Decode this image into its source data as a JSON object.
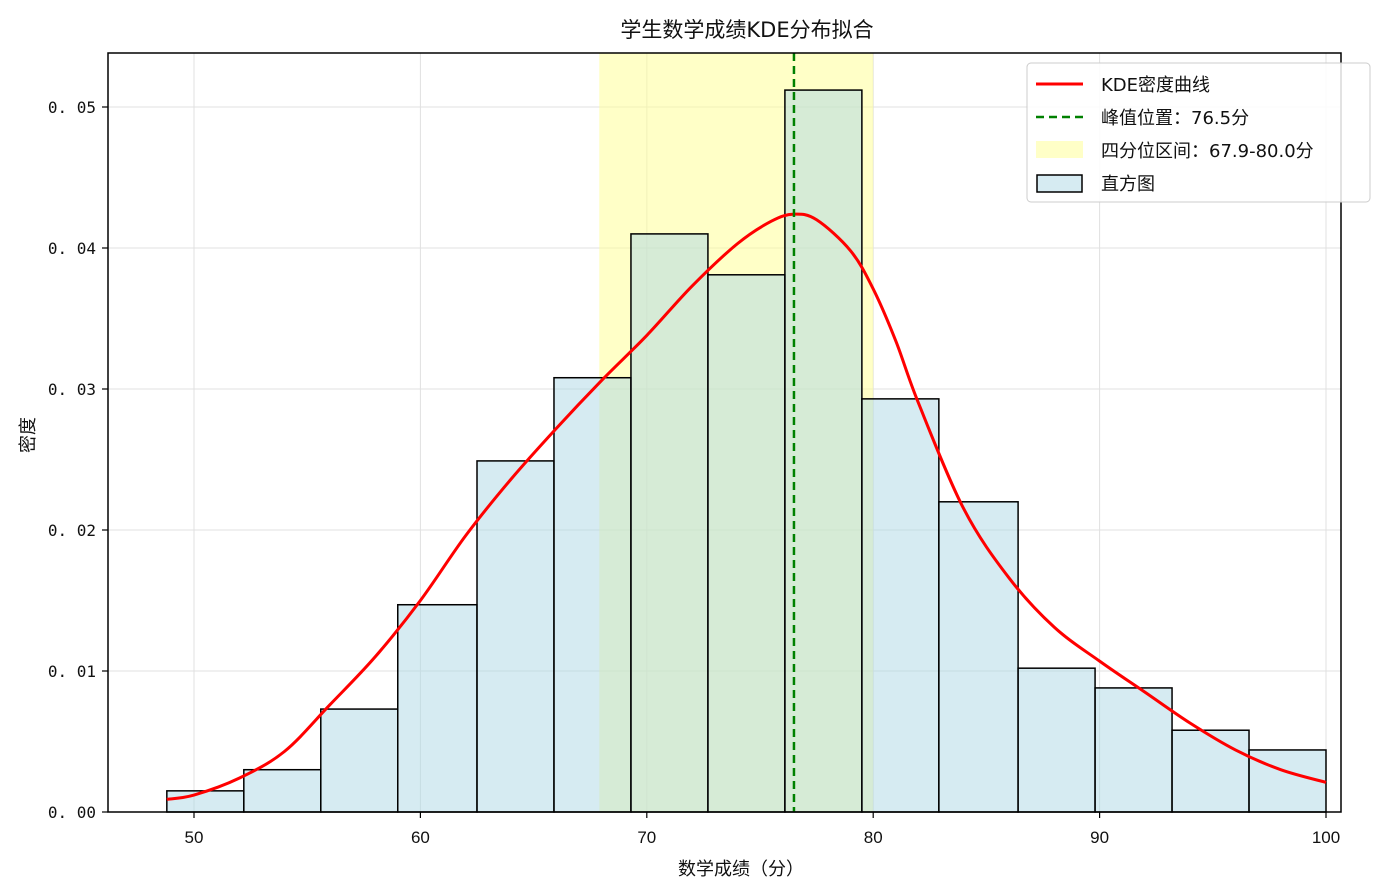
{
  "chart_data": {
    "type": "bar",
    "title": "学生数学成绩KDE分布拟合",
    "xlabel": "数学成绩（分）",
    "ylabel": "密度",
    "xlim": [
      46.5,
      103.5
    ],
    "ylim": [
      0,
      0.054
    ],
    "xticks": [
      50,
      60,
      70,
      80,
      90,
      100
    ],
    "yticks": [
      "0.00",
      "0.01",
      "0.02",
      "0.03",
      "0.04",
      "0.05"
    ],
    "grid": true,
    "legend_position": "upper right",
    "histogram": {
      "name": "直方图",
      "bin_edges": [
        48.8,
        52.2,
        55.6,
        59.0,
        62.5,
        65.9,
        69.3,
        72.7,
        76.1,
        79.5,
        82.9,
        86.4,
        89.8,
        93.2,
        96.6,
        100.0
      ],
      "density": [
        0.0015,
        0.003,
        0.0073,
        0.0147,
        0.0249,
        0.0308,
        0.041,
        0.0381,
        0.0512,
        0.0293,
        0.022,
        0.0102,
        0.0088,
        0.0058,
        0.0044
      ],
      "fill_color": "#add8e6",
      "edge_color": "#000000"
    },
    "series": [
      {
        "name": "KDE密度曲线",
        "type": "line",
        "color": "#ff0000",
        "x": [
          48.8,
          50,
          52,
          54,
          56,
          58,
          60,
          62,
          64,
          66,
          68,
          70,
          72,
          74,
          75.5,
          76.5,
          77.5,
          79,
          80,
          81,
          82,
          84,
          86,
          88,
          90,
          92,
          94,
          96,
          98,
          100
        ],
        "y": [
          0.0009,
          0.0012,
          0.0024,
          0.0043,
          0.0076,
          0.011,
          0.015,
          0.0196,
          0.0236,
          0.0272,
          0.0306,
          0.0338,
          0.0373,
          0.0403,
          0.0419,
          0.0424,
          0.042,
          0.0398,
          0.0371,
          0.0334,
          0.029,
          0.0215,
          0.0166,
          0.0131,
          0.0107,
          0.0085,
          0.0063,
          0.0044,
          0.003,
          0.0021
        ]
      },
      {
        "name": "峰值位置：76.5分",
        "type": "vline",
        "color": "#008000",
        "x": 76.5
      },
      {
        "name": "四分位区间：67.9-80.0分",
        "type": "span",
        "color": "#ffff99",
        "x_start": 67.9,
        "x_end": 80.0
      }
    ]
  },
  "legend": {
    "items": [
      {
        "label": "KDE密度曲线",
        "icon": "red-line"
      },
      {
        "label": "峰值位置：76.5分",
        "icon": "green-dashed-line"
      },
      {
        "label": "四分位区间：67.9-80.0分",
        "icon": "yellow-patch"
      },
      {
        "label": "直方图",
        "icon": "lightblue-patch"
      }
    ]
  },
  "colors": {
    "kde": "#ff0000",
    "peak": "#008000",
    "iqr": "#ffff99",
    "hist": "#add8e6",
    "grid": "#e0e0e0"
  }
}
